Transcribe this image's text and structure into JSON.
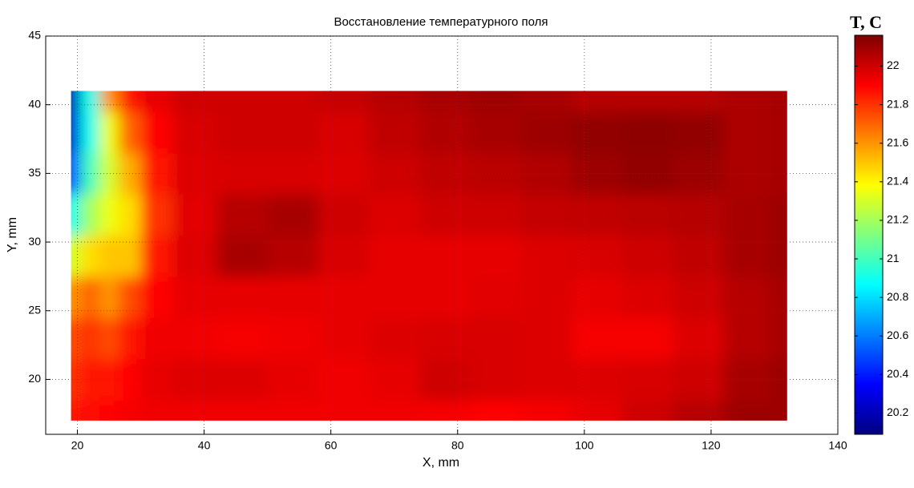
{
  "chart_data": {
    "type": "heatmap",
    "title": "Восстановление температурного поля",
    "x_label": "X, mm",
    "y_label": "Y, mm",
    "colorbar_label": "T, C",
    "colormap": "jet",
    "xlim": [
      15,
      140
    ],
    "xticks": [
      20,
      40,
      60,
      80,
      100,
      120,
      140
    ],
    "ylim": [
      16,
      45
    ],
    "yticks": [
      20,
      25,
      30,
      35,
      40,
      45
    ],
    "clim": [
      20.09,
      22.16
    ],
    "cticks": [
      20.2,
      20.4,
      20.6,
      20.8,
      21,
      21.2,
      21.4,
      21.6,
      21.8,
      22
    ],
    "grid": true,
    "x": [
      19,
      22,
      25,
      28,
      32,
      38,
      46,
      54,
      62,
      70,
      78,
      86,
      94,
      102,
      110,
      118,
      126,
      132
    ],
    "y": [
      17,
      20,
      23,
      26,
      29,
      32,
      35,
      38,
      41
    ],
    "z": [
      [
        21.85,
        21.88,
        21.9,
        21.92,
        21.93,
        21.93,
        21.93,
        21.93,
        21.93,
        21.93,
        21.92,
        21.9,
        21.92,
        21.95,
        22.0,
        22.05,
        22.1,
        22.1
      ],
      [
        21.8,
        21.85,
        21.85,
        21.9,
        21.95,
        21.97,
        21.97,
        21.95,
        21.93,
        21.95,
        22.0,
        21.98,
        21.97,
        21.97,
        21.98,
        22.0,
        22.08,
        22.1
      ],
      [
        21.75,
        21.8,
        21.75,
        21.85,
        21.93,
        21.93,
        21.92,
        21.93,
        21.95,
        21.97,
        21.98,
        21.98,
        21.97,
        21.92,
        21.92,
        21.97,
        22.05,
        22.08
      ],
      [
        21.6,
        21.7,
        21.6,
        21.75,
        21.9,
        21.95,
        21.95,
        21.95,
        21.95,
        21.95,
        21.95,
        21.96,
        21.97,
        21.95,
        21.97,
        22.0,
        22.05,
        22.08
      ],
      [
        21.3,
        21.45,
        21.5,
        21.5,
        21.85,
        21.97,
        22.08,
        22.05,
        21.98,
        21.95,
        21.95,
        21.95,
        21.97,
        21.98,
        22.0,
        22.03,
        22.08,
        22.1
      ],
      [
        20.9,
        21.2,
        21.35,
        21.45,
        21.8,
        21.96,
        22.05,
        22.08,
        22.0,
        21.97,
        22.0,
        22.0,
        22.02,
        22.03,
        22.04,
        22.05,
        22.08,
        22.1
      ],
      [
        20.5,
        21.0,
        21.3,
        21.55,
        21.85,
        21.97,
        21.98,
        21.98,
        21.97,
        22.0,
        22.03,
        22.04,
        22.06,
        22.1,
        22.12,
        22.1,
        22.07,
        22.08
      ],
      [
        20.25,
        20.9,
        21.35,
        21.7,
        21.9,
        21.98,
        22.0,
        22.0,
        21.98,
        22.03,
        22.06,
        22.08,
        22.1,
        22.12,
        22.13,
        22.12,
        22.07,
        22.08
      ],
      [
        20.2,
        20.9,
        21.6,
        21.85,
        21.95,
        22.0,
        22.0,
        22.0,
        22.02,
        22.05,
        22.08,
        22.1,
        22.08,
        22.05,
        22.05,
        22.05,
        22.07,
        22.08
      ]
    ]
  }
}
